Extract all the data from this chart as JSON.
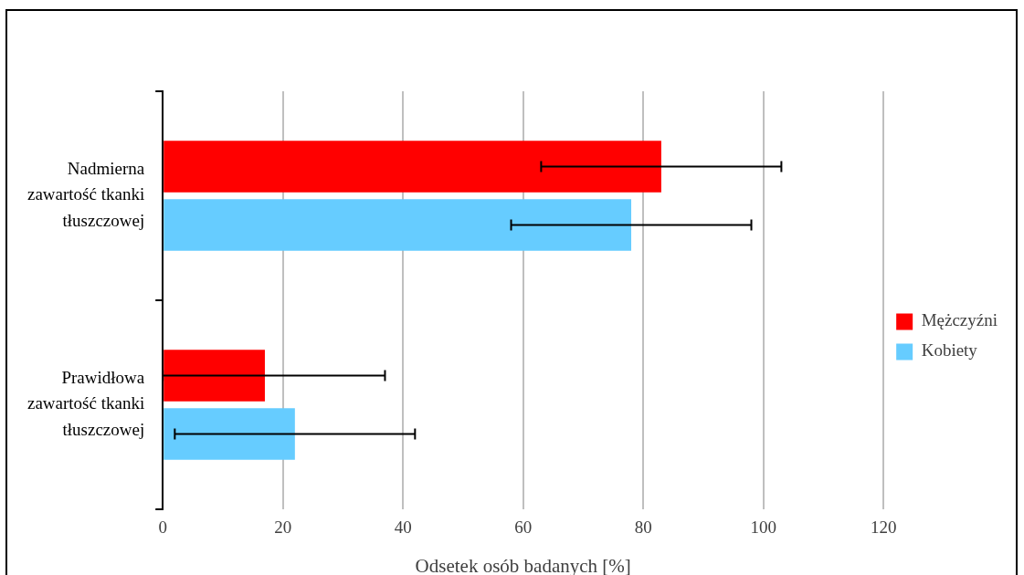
{
  "chart_data": {
    "type": "bar",
    "orientation": "horizontal",
    "xlabel": "Odsetek osób badanych [%]",
    "categories": [
      "Nadmierna zawartość tkanki tłuszczowej",
      "Prawidłowa zawartość tkanki tłuszczowej"
    ],
    "series": [
      {
        "name": "Mężczyźni",
        "color": "#ff0000",
        "values": [
          83,
          17
        ],
        "errors": [
          20,
          [
            0,
            37
          ]
        ]
      },
      {
        "name": "Kobiety",
        "color": "#66ccff",
        "values": [
          78,
          22
        ],
        "errors": [
          20,
          20
        ]
      }
    ],
    "xlim": [
      0,
      120
    ],
    "xticks": [
      0,
      20,
      40,
      60,
      80,
      100,
      120
    ],
    "grid": "x",
    "legend": "right"
  }
}
